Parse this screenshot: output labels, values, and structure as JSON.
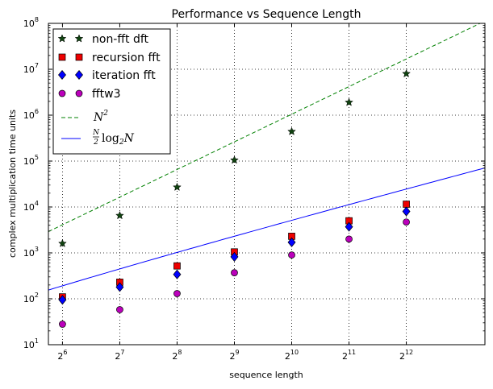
{
  "chart_data": {
    "type": "scatter",
    "title": "Performance vs Sequence Length",
    "xlabel": "sequence length",
    "ylabel": "complex multiplication time units",
    "x_scale": "log2",
    "y_scale": "log10",
    "xlim": [
      54,
      10600
    ],
    "ylim": [
      10,
      100000000
    ],
    "grid": true,
    "legend_position": "top-left",
    "x_ticks": [
      {
        "base": "2",
        "exp": "6",
        "value": 64
      },
      {
        "base": "2",
        "exp": "7",
        "value": 128
      },
      {
        "base": "2",
        "exp": "8",
        "value": 256
      },
      {
        "base": "2",
        "exp": "9",
        "value": 512
      },
      {
        "base": "2",
        "exp": "10",
        "value": 1024
      },
      {
        "base": "2",
        "exp": "11",
        "value": 2048
      },
      {
        "base": "2",
        "exp": "12",
        "value": 4096
      }
    ],
    "y_ticks": [
      {
        "base": "10",
        "exp": "1",
        "value": 10
      },
      {
        "base": "10",
        "exp": "2",
        "value": 100
      },
      {
        "base": "10",
        "exp": "3",
        "value": 1000
      },
      {
        "base": "10",
        "exp": "4",
        "value": 10000
      },
      {
        "base": "10",
        "exp": "5",
        "value": 100000
      },
      {
        "base": "10",
        "exp": "6",
        "value": 1000000
      },
      {
        "base": "10",
        "exp": "7",
        "value": 10000000
      },
      {
        "base": "10",
        "exp": "8",
        "value": 100000000
      }
    ],
    "x": [
      64,
      128,
      256,
      512,
      1024,
      2048,
      4096
    ],
    "series": [
      {
        "name": "non-fft dft",
        "marker": "star",
        "color": "#114411",
        "values": [
          1600,
          6500,
          27000,
          105000,
          440000,
          1900000,
          8000000
        ]
      },
      {
        "name": "recursion fft",
        "marker": "square",
        "color": "#ee0000",
        "values": [
          110,
          230,
          520,
          1050,
          2300,
          5000,
          11500
        ]
      },
      {
        "name": "iteration fft",
        "marker": "diamond",
        "color": "#0000ff",
        "values": [
          95,
          180,
          340,
          820,
          1700,
          3700,
          8000
        ]
      },
      {
        "name": "fftw3",
        "marker": "circle",
        "color": "#bb00bb",
        "values": [
          28,
          58,
          130,
          370,
          900,
          2000,
          4700
        ]
      }
    ],
    "lines": [
      {
        "name": "N^2",
        "label_main": "N",
        "label_sup": "2",
        "style": "dashed",
        "color": "#008000",
        "formula": "N^2"
      },
      {
        "name": "(N/2) log2 N",
        "label_num": "N",
        "label_den": "2",
        "label_fn": "log",
        "label_sub": "2",
        "label_var": "N",
        "style": "solid",
        "color": "#0000ff",
        "formula": "N/2*log2(N)"
      }
    ]
  }
}
